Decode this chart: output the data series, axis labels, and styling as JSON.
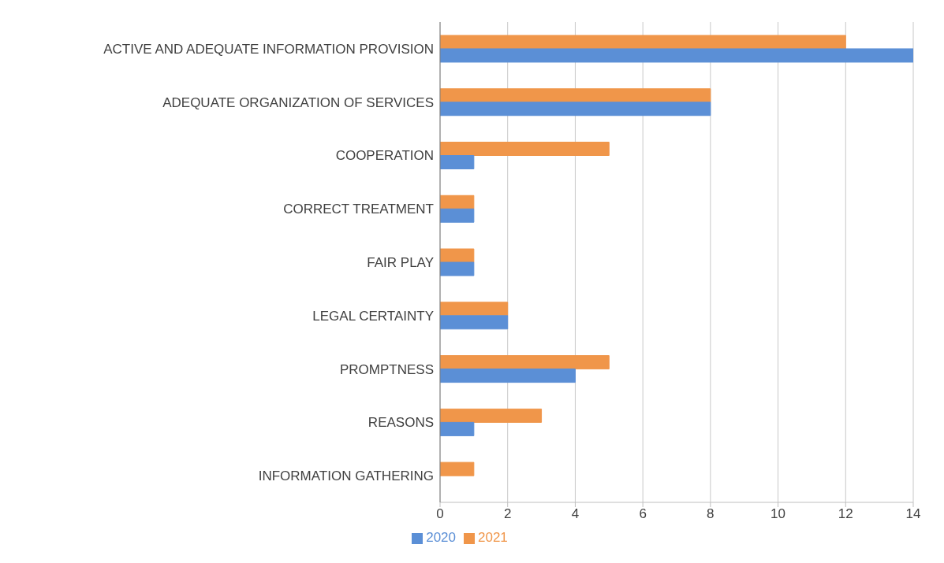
{
  "chart_data": {
    "type": "bar",
    "orientation": "horizontal",
    "categories": [
      "ACTIVE AND ADEQUATE INFORMATION PROVISION",
      "ADEQUATE ORGANIZATION OF SERVICES",
      "COOPERATION",
      "CORRECT TREATMENT",
      "FAIR PLAY",
      "LEGAL CERTAINTY",
      "PROMPTNESS",
      "REASONS",
      "INFORMATION GATHERING"
    ],
    "series": [
      {
        "name": "2021",
        "color": "#f0964a",
        "values": [
          12,
          8,
          5,
          1,
          1,
          2,
          5,
          3,
          1
        ]
      },
      {
        "name": "2020",
        "color": "#5b8fd6",
        "values": [
          14,
          8,
          1,
          1,
          1,
          2,
          4,
          1,
          0
        ]
      }
    ],
    "xlim": [
      0,
      14
    ],
    "xticks": [
      0,
      2,
      4,
      6,
      8,
      10,
      12,
      14
    ],
    "grid": "x",
    "legend": "bottom"
  }
}
